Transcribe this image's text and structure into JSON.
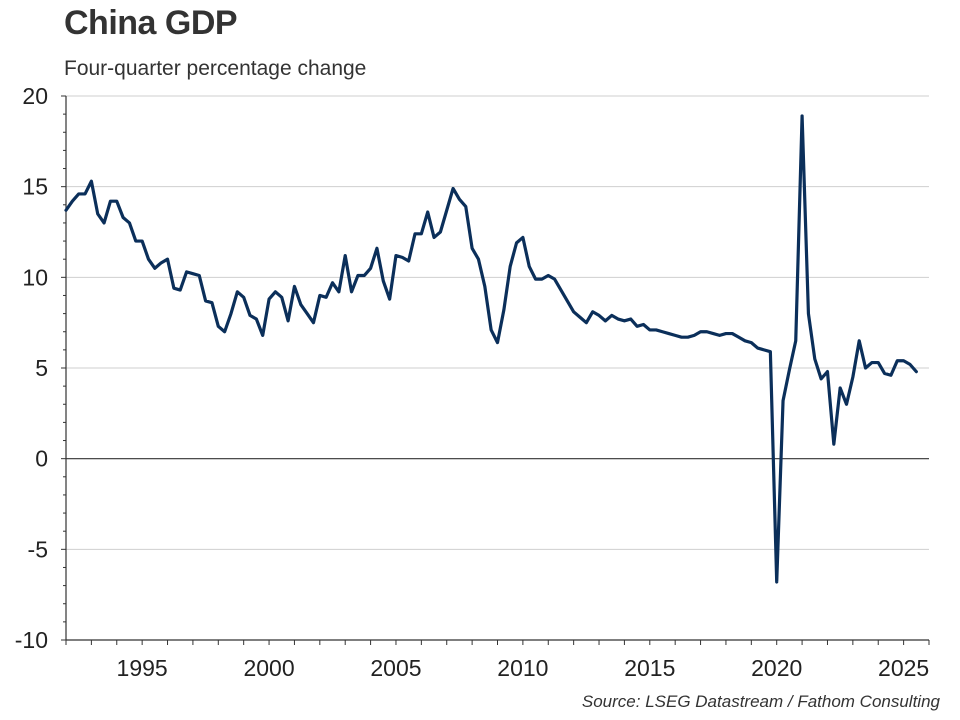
{
  "header": {
    "title": "China GDP",
    "subtitle": "Four-quarter percentage change"
  },
  "footer": {
    "source": "Source: LSEG Datastream / Fathom Consulting"
  },
  "chart_data": {
    "type": "line",
    "title": "China GDP",
    "subtitle": "Four-quarter percentage change",
    "xlabel": "",
    "ylabel": "",
    "xlim": [
      1992.0,
      2026.0
    ],
    "ylim": [
      -10,
      20
    ],
    "y_ticks": [
      20,
      15,
      10,
      5,
      0,
      -5,
      -10
    ],
    "x_ticks": [
      1995,
      2000,
      2005,
      2010,
      2015,
      2020,
      2025
    ],
    "grid": "horizontal",
    "zero_line": true,
    "line_color": "#0b2f5a",
    "x": [
      1992.0,
      1992.25,
      1992.5,
      1992.75,
      1993.0,
      1993.25,
      1993.5,
      1993.75,
      1994.0,
      1994.25,
      1994.5,
      1994.75,
      1995.0,
      1995.25,
      1995.5,
      1995.75,
      1996.0,
      1996.25,
      1996.5,
      1996.75,
      1997.0,
      1997.25,
      1997.5,
      1997.75,
      1998.0,
      1998.25,
      1998.5,
      1998.75,
      1999.0,
      1999.25,
      1999.5,
      1999.75,
      2000.0,
      2000.25,
      2000.5,
      2000.75,
      2001.0,
      2001.25,
      2001.5,
      2001.75,
      2002.0,
      2002.25,
      2002.5,
      2002.75,
      2003.0,
      2003.25,
      2003.5,
      2003.75,
      2004.0,
      2004.25,
      2004.5,
      2004.75,
      2005.0,
      2005.25,
      2005.5,
      2005.75,
      2006.0,
      2006.25,
      2006.5,
      2006.75,
      2007.0,
      2007.25,
      2007.5,
      2007.75,
      2008.0,
      2008.25,
      2008.5,
      2008.75,
      2009.0,
      2009.25,
      2009.5,
      2009.75,
      2010.0,
      2010.25,
      2010.5,
      2010.75,
      2011.0,
      2011.25,
      2011.5,
      2011.75,
      2012.0,
      2012.25,
      2012.5,
      2012.75,
      2013.0,
      2013.25,
      2013.5,
      2013.75,
      2014.0,
      2014.25,
      2014.5,
      2014.75,
      2015.0,
      2015.25,
      2015.5,
      2015.75,
      2016.0,
      2016.25,
      2016.5,
      2016.75,
      2017.0,
      2017.25,
      2017.5,
      2017.75,
      2018.0,
      2018.25,
      2018.5,
      2018.75,
      2019.0,
      2019.25,
      2019.5,
      2019.75,
      2020.0,
      2020.25,
      2020.5,
      2020.75,
      2021.0,
      2021.25,
      2021.5,
      2021.75,
      2022.0,
      2022.25,
      2022.5,
      2022.75,
      2023.0,
      2023.25,
      2023.5,
      2023.75,
      2024.0,
      2024.25,
      2024.5,
      2024.75,
      2025.0,
      2025.25,
      2025.5
    ],
    "series": [
      {
        "values": [
          13.7,
          14.2,
          14.6,
          14.6,
          15.3,
          13.5,
          13.0,
          14.2,
          14.2,
          13.3,
          13.0,
          12.0,
          12.0,
          11.0,
          10.5,
          10.8,
          11.0,
          9.4,
          9.3,
          10.3,
          10.2,
          10.1,
          8.7,
          8.6,
          7.3,
          7.0,
          8.0,
          9.2,
          8.9,
          7.9,
          7.7,
          6.8,
          8.8,
          9.2,
          8.9,
          7.6,
          9.5,
          8.5,
          8.0,
          7.5,
          9.0,
          8.9,
          9.7,
          9.2,
          11.2,
          9.2,
          10.1,
          10.1,
          10.5,
          11.6,
          9.8,
          8.8,
          11.2,
          11.1,
          10.9,
          12.4,
          12.4,
          13.6,
          12.2,
          12.5,
          13.7,
          14.9,
          14.3,
          13.9,
          11.6,
          11.0,
          9.5,
          7.1,
          6.4,
          8.2,
          10.6,
          11.9,
          12.2,
          10.6,
          9.9,
          9.9,
          10.1,
          9.9,
          9.3,
          8.7,
          8.1,
          7.8,
          7.5,
          8.1,
          7.9,
          7.6,
          7.9,
          7.7,
          7.6,
          7.7,
          7.3,
          7.4,
          7.1,
          7.1,
          7.0,
          6.9,
          6.8,
          6.7,
          6.7,
          6.8,
          7.0,
          7.0,
          6.9,
          6.8,
          6.9,
          6.9,
          6.7,
          6.5,
          6.4,
          6.1,
          6.0,
          5.9,
          -6.8,
          3.2,
          4.9,
          6.5,
          18.9,
          8.0,
          5.5,
          4.4,
          4.8,
          0.8,
          3.9,
          3.0,
          4.5,
          6.5,
          5.0,
          5.3,
          5.3,
          4.7,
          4.6,
          5.4,
          5.4,
          5.2,
          4.8
        ]
      }
    ]
  }
}
